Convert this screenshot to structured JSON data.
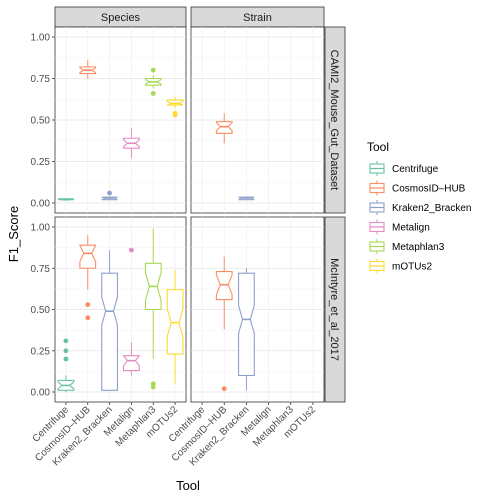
{
  "chart_data": {
    "type": "boxplot",
    "xlabel": "Tool",
    "ylabel": "F1_Score",
    "ylim": [
      0,
      1
    ],
    "y_ticks": [
      "0.00",
      "0.25",
      "0.50",
      "0.75",
      "1.00"
    ],
    "y_tick_values": [
      0,
      0.25,
      0.5,
      0.75,
      1.0
    ],
    "categories": [
      "Centrifuge",
      "CosmosID–HUB",
      "Kraken2_Bracken",
      "Metalign",
      "Metaphlan3",
      "mOTUs2"
    ],
    "facet_columns": [
      "Species",
      "Strain"
    ],
    "facet_rows": [
      "CAMI2_Mouse_Gut_Dataset",
      "McIntyre_et_al_2017"
    ],
    "legend": {
      "title": "Tool",
      "position": "right",
      "entries": [
        "Centrifuge",
        "CosmosID–HUB",
        "Kraken2_Bracken",
        "Metalign",
        "Metaphlan3",
        "mOTUs2"
      ]
    },
    "colors": {
      "Centrifuge": "#66c2a5",
      "CosmosID–HUB": "#fc8d62",
      "Kraken2_Bracken": "#8da0cb",
      "Metalign": "#e78ac3",
      "Metaphlan3": "#a6d854",
      "mOTUs2": "#ffd92f"
    },
    "grid": true,
    "notched": true,
    "panels": [
      {
        "row": "CAMI2_Mouse_Gut_Dataset",
        "col": "Species",
        "boxes": [
          {
            "tool": "Centrifuge",
            "min": 0.02,
            "q1": 0.02,
            "median": 0.02,
            "q3": 0.025,
            "max": 0.025,
            "outliers": []
          },
          {
            "tool": "CosmosID–HUB",
            "min": 0.75,
            "q1": 0.78,
            "median": 0.8,
            "q3": 0.82,
            "max": 0.86,
            "outliers": []
          },
          {
            "tool": "Kraken2_Bracken",
            "min": 0.02,
            "q1": 0.02,
            "median": 0.03,
            "q3": 0.035,
            "max": 0.04,
            "outliers": [
              0.06
            ]
          },
          {
            "tool": "Metalign",
            "min": 0.27,
            "q1": 0.33,
            "median": 0.36,
            "q3": 0.39,
            "max": 0.45,
            "outliers": []
          },
          {
            "tool": "Metaphlan3",
            "min": 0.69,
            "q1": 0.71,
            "median": 0.73,
            "q3": 0.75,
            "max": 0.77,
            "outliers": [
              0.8,
              0.66
            ]
          },
          {
            "tool": "mOTUs2",
            "min": 0.57,
            "q1": 0.59,
            "median": 0.6,
            "q3": 0.62,
            "max": 0.64,
            "outliers": [
              0.54,
              0.53
            ]
          }
        ]
      },
      {
        "row": "CAMI2_Mouse_Gut_Dataset",
        "col": "Strain",
        "boxes": [
          {
            "tool": "CosmosID–HUB",
            "min": 0.36,
            "q1": 0.42,
            "median": 0.46,
            "q3": 0.49,
            "max": 0.54,
            "outliers": []
          },
          {
            "tool": "Kraken2_Bracken",
            "min": 0.02,
            "q1": 0.02,
            "median": 0.03,
            "q3": 0.035,
            "max": 0.04,
            "outliers": []
          }
        ]
      },
      {
        "row": "McIntyre_et_al_2017",
        "col": "Species",
        "boxes": [
          {
            "tool": "Centrifuge",
            "min": 0.0,
            "q1": 0.01,
            "median": 0.04,
            "q3": 0.07,
            "max": 0.1,
            "outliers": [
              0.2,
              0.25,
              0.31
            ]
          },
          {
            "tool": "CosmosID–HUB",
            "min": 0.62,
            "q1": 0.75,
            "median": 0.84,
            "q3": 0.89,
            "max": 0.95,
            "outliers": [
              0.53,
              0.45
            ]
          },
          {
            "tool": "Kraken2_Bracken",
            "min": 0.01,
            "q1": 0.01,
            "median": 0.49,
            "q3": 0.72,
            "max": 0.86,
            "outliers": []
          },
          {
            "tool": "Metalign",
            "min": 0.1,
            "q1": 0.13,
            "median": 0.19,
            "q3": 0.22,
            "max": 0.3,
            "outliers": [
              0.86
            ]
          },
          {
            "tool": "Metaphlan3",
            "min": 0.2,
            "q1": 0.5,
            "median": 0.64,
            "q3": 0.78,
            "max": 0.99,
            "outliers": [
              0.05,
              0.03
            ]
          },
          {
            "tool": "mOTUs2",
            "min": 0.05,
            "q1": 0.23,
            "median": 0.42,
            "q3": 0.62,
            "max": 0.74,
            "outliers": []
          }
        ]
      },
      {
        "row": "McIntyre_et_al_2017",
        "col": "Strain",
        "boxes": [
          {
            "tool": "CosmosID–HUB",
            "min": 0.38,
            "q1": 0.56,
            "median": 0.65,
            "q3": 0.73,
            "max": 0.82,
            "outliers": [
              0.02
            ]
          },
          {
            "tool": "Kraken2_Bracken",
            "min": 0.01,
            "q1": 0.1,
            "median": 0.44,
            "q3": 0.72,
            "max": 0.75,
            "outliers": []
          }
        ]
      }
    ]
  }
}
